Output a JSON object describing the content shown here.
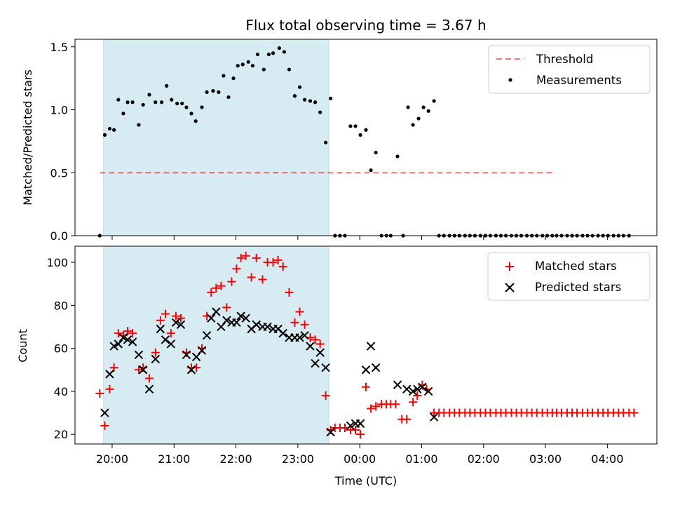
{
  "chart_data": [
    {
      "type": "scatter",
      "title": "Flux total observing time = 3.67 h",
      "xlabel": "",
      "ylabel": "Matched/Predicted stars",
      "ylim": [
        0,
        1.56
      ],
      "yticks": [
        "0.0",
        "0.5",
        "1.0",
        "1.5"
      ],
      "xlim_hours": [
        19.4,
        28.8
      ],
      "shaded_span_hours": [
        19.86,
        23.5
      ],
      "shaded_color": "#add8e6",
      "legend_position": "top-right",
      "threshold": {
        "name": "Threshold",
        "value": 0.5,
        "x_range_hours": [
          19.8,
          27.15
        ],
        "color": "#ff0000"
      },
      "series": [
        {
          "name": "Measurements",
          "color": "#000000",
          "points": [
            [
              19.8,
              0.0
            ],
            [
              19.88,
              0.8
            ],
            [
              19.96,
              0.85
            ],
            [
              20.03,
              0.84
            ],
            [
              20.1,
              1.08
            ],
            [
              20.18,
              0.97
            ],
            [
              20.25,
              1.06
            ],
            [
              20.33,
              1.06
            ],
            [
              20.43,
              0.88
            ],
            [
              20.5,
              1.04
            ],
            [
              20.6,
              1.12
            ],
            [
              20.7,
              1.06
            ],
            [
              20.8,
              1.06
            ],
            [
              20.88,
              1.19
            ],
            [
              20.96,
              1.08
            ],
            [
              21.05,
              1.05
            ],
            [
              21.13,
              1.05
            ],
            [
              21.2,
              1.02
            ],
            [
              21.28,
              0.97
            ],
            [
              21.35,
              0.91
            ],
            [
              21.45,
              1.02
            ],
            [
              21.53,
              1.14
            ],
            [
              21.63,
              1.15
            ],
            [
              21.72,
              1.14
            ],
            [
              21.8,
              1.27
            ],
            [
              21.88,
              1.1
            ],
            [
              21.96,
              1.25
            ],
            [
              22.03,
              1.35
            ],
            [
              22.11,
              1.36
            ],
            [
              22.2,
              1.38
            ],
            [
              22.27,
              1.35
            ],
            [
              22.35,
              1.44
            ],
            [
              22.45,
              1.32
            ],
            [
              22.53,
              1.44
            ],
            [
              22.6,
              1.45
            ],
            [
              22.7,
              1.49
            ],
            [
              22.78,
              1.46
            ],
            [
              22.86,
              1.32
            ],
            [
              22.95,
              1.11
            ],
            [
              23.03,
              1.18
            ],
            [
              23.11,
              1.08
            ],
            [
              23.2,
              1.07
            ],
            [
              23.28,
              1.06
            ],
            [
              23.36,
              0.98
            ],
            [
              23.45,
              0.74
            ],
            [
              23.53,
              1.09
            ],
            [
              23.6,
              0.0
            ],
            [
              23.68,
              0.0
            ],
            [
              23.76,
              0.0
            ],
            [
              23.85,
              0.87
            ],
            [
              23.93,
              0.87
            ],
            [
              24.01,
              0.8
            ],
            [
              24.1,
              0.84
            ],
            [
              24.18,
              0.52
            ],
            [
              24.26,
              0.66
            ],
            [
              24.35,
              0.0
            ],
            [
              24.43,
              0.0
            ],
            [
              24.5,
              0.0
            ],
            [
              24.61,
              0.63
            ],
            [
              24.7,
              0.0
            ],
            [
              24.78,
              1.02
            ],
            [
              24.86,
              0.88
            ],
            [
              24.95,
              0.93
            ],
            [
              25.03,
              1.02
            ],
            [
              25.11,
              0.99
            ],
            [
              25.2,
              1.07
            ],
            [
              25.28,
              0.0
            ],
            [
              25.36,
              0.0
            ],
            [
              25.45,
              0.0
            ],
            [
              25.53,
              0.0
            ],
            [
              25.61,
              0.0
            ],
            [
              25.7,
              0.0
            ],
            [
              25.78,
              0.0
            ],
            [
              25.86,
              0.0
            ],
            [
              25.95,
              0.0
            ],
            [
              26.03,
              0.0
            ],
            [
              26.11,
              0.0
            ],
            [
              26.2,
              0.0
            ],
            [
              26.28,
              0.0
            ],
            [
              26.36,
              0.0
            ],
            [
              26.45,
              0.0
            ],
            [
              26.53,
              0.0
            ],
            [
              26.61,
              0.0
            ],
            [
              26.7,
              0.0
            ],
            [
              26.78,
              0.0
            ],
            [
              26.86,
              0.0
            ],
            [
              26.95,
              0.0
            ],
            [
              27.03,
              0.0
            ],
            [
              27.11,
              0.0
            ],
            [
              27.18,
              0.0
            ],
            [
              27.26,
              0.0
            ],
            [
              27.35,
              0.0
            ],
            [
              27.43,
              0.0
            ],
            [
              27.51,
              0.0
            ],
            [
              27.6,
              0.0
            ],
            [
              27.68,
              0.0
            ],
            [
              27.76,
              0.0
            ],
            [
              27.85,
              0.0
            ],
            [
              27.93,
              0.0
            ],
            [
              28.01,
              0.0
            ],
            [
              28.1,
              0.0
            ],
            [
              28.18,
              0.0
            ],
            [
              28.26,
              0.0
            ],
            [
              28.35,
              0.0
            ]
          ]
        }
      ]
    },
    {
      "type": "scatter",
      "title": "",
      "xlabel": "Time (UTC)",
      "ylabel": "Count",
      "ylim": [
        15.5,
        107.5
      ],
      "yticks": [
        "20",
        "40",
        "60",
        "80",
        "100"
      ],
      "xticks": [
        "20:00",
        "21:00",
        "22:00",
        "23:00",
        "00:00",
        "01:00",
        "02:00",
        "03:00",
        "04:00"
      ],
      "xlim_hours": [
        19.4,
        28.8
      ],
      "shaded_span_hours": [
        19.86,
        23.5
      ],
      "shaded_color": "#add8e6",
      "legend_position": "top-right",
      "series": [
        {
          "name": "Matched stars",
          "marker": "+",
          "color": "#ff0000",
          "points": [
            [
              19.8,
              39
            ],
            [
              19.88,
              24
            ],
            [
              19.96,
              41
            ],
            [
              20.03,
              51
            ],
            [
              20.1,
              67
            ],
            [
              20.18,
              66
            ],
            [
              20.25,
              68
            ],
            [
              20.33,
              67
            ],
            [
              20.43,
              50
            ],
            [
              20.5,
              51
            ],
            [
              20.6,
              46
            ],
            [
              20.7,
              58
            ],
            [
              20.78,
              73
            ],
            [
              20.86,
              76
            ],
            [
              20.95,
              67
            ],
            [
              21.03,
              75
            ],
            [
              21.11,
              74
            ],
            [
              21.2,
              58
            ],
            [
              21.28,
              51
            ],
            [
              21.36,
              51
            ],
            [
              21.45,
              60
            ],
            [
              21.53,
              75
            ],
            [
              21.6,
              86
            ],
            [
              21.68,
              88
            ],
            [
              21.76,
              89
            ],
            [
              21.85,
              79
            ],
            [
              21.93,
              91
            ],
            [
              22.01,
              97
            ],
            [
              22.08,
              102
            ],
            [
              22.16,
              103
            ],
            [
              22.25,
              93
            ],
            [
              22.33,
              102
            ],
            [
              22.43,
              92
            ],
            [
              22.51,
              100
            ],
            [
              22.6,
              100
            ],
            [
              22.68,
              101
            ],
            [
              22.76,
              98
            ],
            [
              22.86,
              86
            ],
            [
              22.95,
              72
            ],
            [
              23.03,
              77
            ],
            [
              23.11,
              71
            ],
            [
              23.2,
              65
            ],
            [
              23.28,
              64
            ],
            [
              23.36,
              62
            ],
            [
              23.45,
              38
            ],
            [
              23.53,
              22
            ],
            [
              23.6,
              23
            ],
            [
              23.68,
              23
            ],
            [
              23.76,
              23
            ],
            [
              23.85,
              22
            ],
            [
              23.93,
              22
            ],
            [
              24.01,
              20
            ],
            [
              24.1,
              42
            ],
            [
              24.18,
              32
            ],
            [
              24.26,
              33
            ],
            [
              24.35,
              34
            ],
            [
              24.43,
              34
            ],
            [
              24.5,
              34
            ],
            [
              24.58,
              34
            ],
            [
              24.68,
              27
            ],
            [
              24.76,
              27
            ],
            [
              24.86,
              35
            ],
            [
              24.93,
              38
            ],
            [
              25.01,
              43
            ],
            [
              25.08,
              41
            ],
            [
              25.2,
              30
            ],
            [
              25.28,
              30
            ],
            [
              25.36,
              30
            ],
            [
              25.45,
              30
            ],
            [
              25.53,
              30
            ],
            [
              25.61,
              30
            ],
            [
              25.7,
              30
            ],
            [
              25.78,
              30
            ],
            [
              25.86,
              30
            ],
            [
              25.95,
              30
            ],
            [
              26.03,
              30
            ],
            [
              26.11,
              30
            ],
            [
              26.2,
              30
            ],
            [
              26.28,
              30
            ],
            [
              26.36,
              30
            ],
            [
              26.45,
              30
            ],
            [
              26.53,
              30
            ],
            [
              26.61,
              30
            ],
            [
              26.7,
              30
            ],
            [
              26.78,
              30
            ],
            [
              26.86,
              30
            ],
            [
              26.95,
              30
            ],
            [
              27.03,
              30
            ],
            [
              27.11,
              30
            ],
            [
              27.18,
              30
            ],
            [
              27.26,
              30
            ],
            [
              27.35,
              30
            ],
            [
              27.43,
              30
            ],
            [
              27.51,
              30
            ],
            [
              27.6,
              30
            ],
            [
              27.68,
              30
            ],
            [
              27.76,
              30
            ],
            [
              27.85,
              30
            ],
            [
              27.93,
              30
            ],
            [
              28.01,
              30
            ],
            [
              28.1,
              30
            ],
            [
              28.18,
              30
            ],
            [
              28.26,
              30
            ],
            [
              28.35,
              30
            ],
            [
              28.43,
              30
            ]
          ]
        },
        {
          "name": "Predicted stars",
          "marker": "x",
          "color": "#000000",
          "points": [
            [
              19.88,
              30
            ],
            [
              19.96,
              48
            ],
            [
              20.03,
              61
            ],
            [
              20.1,
              62
            ],
            [
              20.18,
              65
            ],
            [
              20.25,
              64
            ],
            [
              20.33,
              63
            ],
            [
              20.43,
              57
            ],
            [
              20.5,
              50
            ],
            [
              20.6,
              41
            ],
            [
              20.7,
              55
            ],
            [
              20.78,
              69
            ],
            [
              20.86,
              64
            ],
            [
              20.95,
              62
            ],
            [
              21.03,
              72
            ],
            [
              21.11,
              71
            ],
            [
              21.2,
              57
            ],
            [
              21.28,
              50
            ],
            [
              21.36,
              56
            ],
            [
              21.45,
              59
            ],
            [
              21.53,
              66
            ],
            [
              21.6,
              74
            ],
            [
              21.68,
              77
            ],
            [
              21.76,
              70
            ],
            [
              21.85,
              73
            ],
            [
              21.93,
              72
            ],
            [
              22.01,
              72
            ],
            [
              22.08,
              75
            ],
            [
              22.16,
              74
            ],
            [
              22.25,
              69
            ],
            [
              22.33,
              71
            ],
            [
              22.43,
              70
            ],
            [
              22.51,
              70
            ],
            [
              22.6,
              69
            ],
            [
              22.68,
              69
            ],
            [
              22.76,
              67
            ],
            [
              22.86,
              65
            ],
            [
              22.95,
              65
            ],
            [
              23.03,
              65
            ],
            [
              23.11,
              66
            ],
            [
              23.2,
              61
            ],
            [
              23.28,
              53
            ],
            [
              23.36,
              58
            ],
            [
              23.45,
              51
            ],
            [
              23.53,
              21
            ],
            [
              23.85,
              24
            ],
            [
              23.93,
              25
            ],
            [
              24.01,
              25
            ],
            [
              24.1,
              50
            ],
            [
              24.18,
              61
            ],
            [
              24.26,
              51
            ],
            [
              24.61,
              43
            ],
            [
              24.76,
              41
            ],
            [
              24.86,
              40
            ],
            [
              24.93,
              41
            ],
            [
              25.01,
              42
            ],
            [
              25.11,
              40
            ],
            [
              25.2,
              28
            ]
          ]
        }
      ]
    }
  ]
}
